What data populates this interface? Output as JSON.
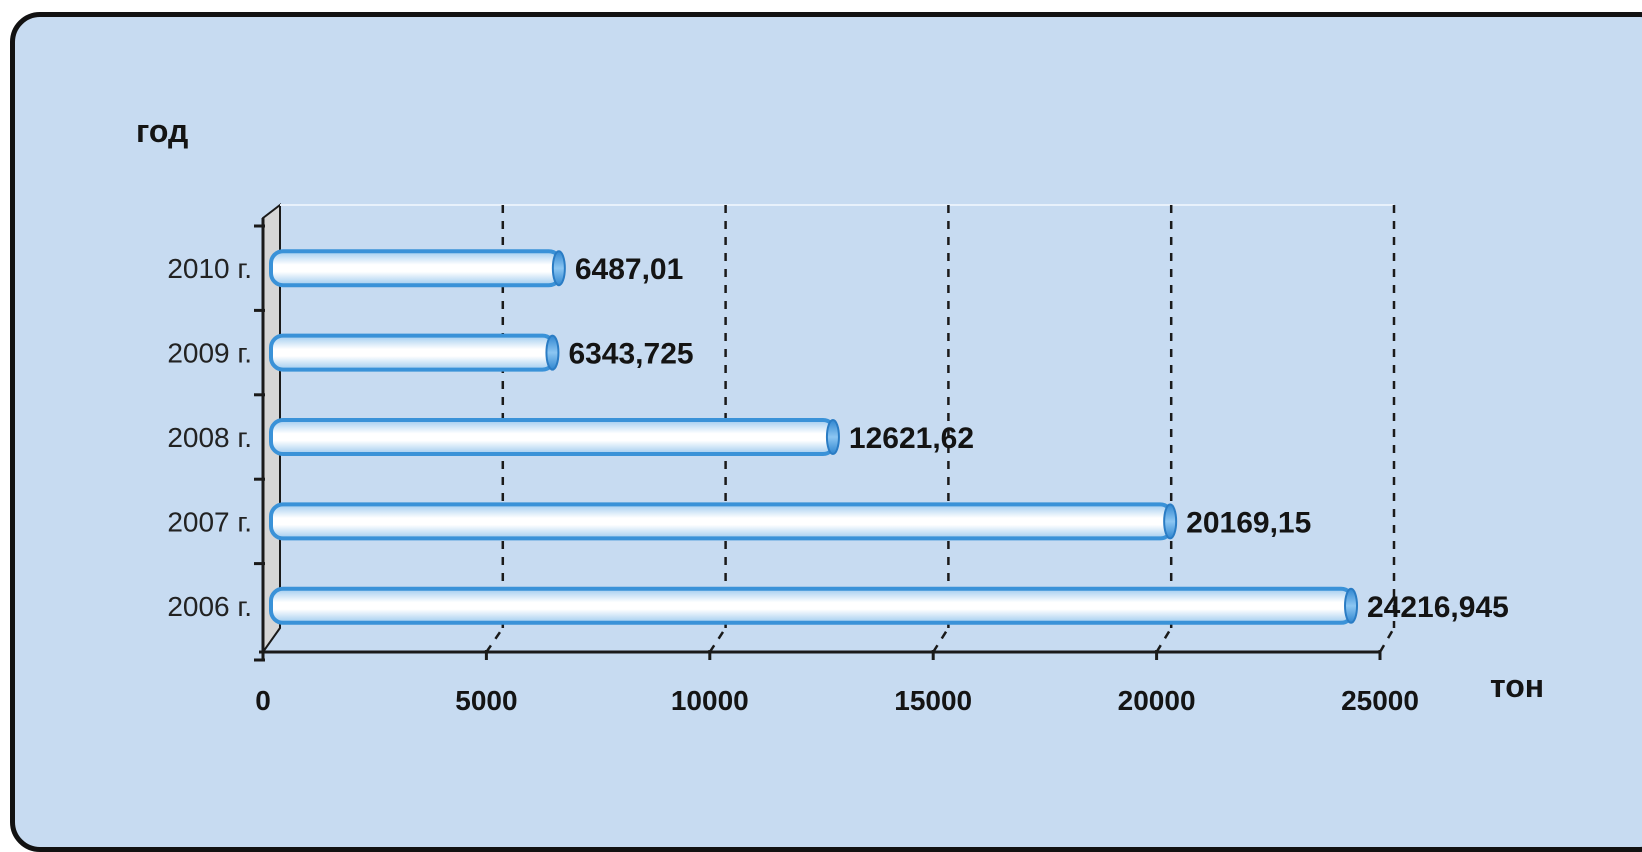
{
  "chart_data": {
    "type": "bar",
    "orientation": "horizontal",
    "ylabel": "год",
    "xlabel": "тон",
    "categories": [
      "2010 г.",
      "2009 г.",
      "2008 г.",
      "2007 г.",
      "2006 г."
    ],
    "values": [
      6487.01,
      6343.725,
      12621.62,
      20169.15,
      24216.945
    ],
    "data_labels": [
      "6487,01",
      "6343,725",
      "12621,62",
      "20169,15",
      "24216,945"
    ],
    "xlim": [
      0,
      25000
    ],
    "xticks": [
      "0",
      "5000",
      "10000",
      "15000",
      "20000",
      "25000"
    ],
    "grid": "vertical dashed",
    "colors": {
      "background": "#c7dbf1",
      "bar_edge": "#3a92d8",
      "bar_fill_light": "#ffffff",
      "bar_fill_dark": "#9fcbef",
      "grid": "#1a1a1a",
      "side_wall": "#d6d6d6"
    }
  }
}
